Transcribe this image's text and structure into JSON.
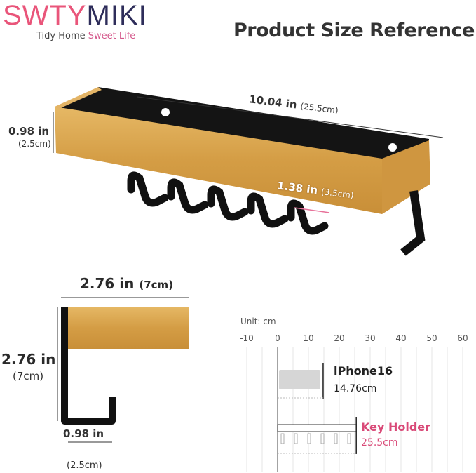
{
  "brand": {
    "name_part1": "SWTY",
    "name_part2": "MIKI",
    "tagline_part1": "Tidy Home",
    "tagline_part2": "Sweet Life"
  },
  "title": "Product Size Reference",
  "main_view": {
    "length": "10.04 in",
    "length_cm": "(25.5cm)",
    "height": "0.98 in",
    "height_cm": "(2.5cm)",
    "hook_spacing": "1.38 in",
    "hook_spacing_cm": "(3.5cm)",
    "hook_count": 6
  },
  "side_view": {
    "depth": "2.76 in",
    "depth_cm": "(7cm)",
    "height": "2.76 in",
    "height_cm": "(7cm)",
    "hook_width": "0.98 in",
    "hook_width_cm": "(2.5cm)"
  },
  "comparison": {
    "unit_label": "Unit: cm",
    "ticks": [
      "-10",
      "0",
      "10",
      "20",
      "30",
      "40",
      "50",
      "60"
    ],
    "items": [
      {
        "name": "iPhone16",
        "size_label": "14.76cm",
        "value": 14.76,
        "color": "#222222"
      },
      {
        "name": "Key Holder",
        "size_label": "25.5cm",
        "value": 25.5,
        "color": "#d94a78"
      }
    ]
  },
  "colors": {
    "brand_pink": "#e9557a",
    "brand_navy": "#2e2d5a",
    "bamboo": "#d9a64e",
    "metal": "#111111"
  }
}
